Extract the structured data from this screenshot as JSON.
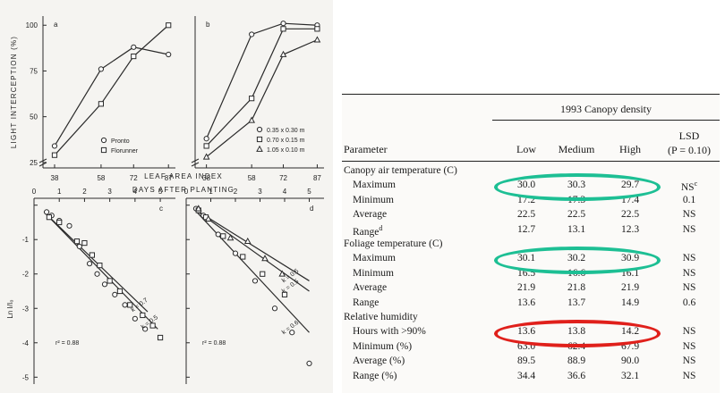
{
  "left_figure": {
    "top_ylabel": "LIGHT INTERCEPTION (%)",
    "top_xlabel": "DAYS AFTER PLANTING",
    "bottom_top_label": "LEAF AREA INDEX",
    "bottom_ylabel": "Ln I/I₀",
    "panel_letters": [
      "a",
      "b",
      "c",
      "d"
    ],
    "legend_a": [
      {
        "marker": "circle",
        "label": "Pronto"
      },
      {
        "marker": "square",
        "label": "Florunner"
      }
    ],
    "legend_b": [
      {
        "marker": "circle",
        "label": "0.35 x 0.30 m"
      },
      {
        "marker": "square",
        "label": "0.70 x 0.15 m"
      },
      {
        "marker": "triangle",
        "label": "1.05 x 0.10 m"
      }
    ],
    "r2_c": "r² = 0.88",
    "r2_d": "r² = 0.88",
    "line_labels_c": [
      "k = 0.7",
      "k = 0.5"
    ],
    "line_labels_d": [
      "k = 0.5",
      "k = 0.5",
      "k = 0.6"
    ]
  },
  "chart_data": [
    {
      "type": "line",
      "panel": "a",
      "x": [
        38,
        58,
        72,
        87
      ],
      "series": [
        {
          "name": "Pronto",
          "marker": "circle",
          "values": [
            34,
            76,
            88,
            84
          ]
        },
        {
          "name": "Florunner",
          "marker": "square",
          "values": [
            29,
            57,
            83,
            100
          ]
        }
      ],
      "xlabel": "DAYS AFTER PLANTING",
      "ylabel": "LIGHT INTERCEPTION (%)",
      "xticks": [
        38,
        58,
        72,
        87
      ],
      "yticks": [
        25,
        50,
        75,
        100
      ],
      "xlim": [
        33,
        90
      ],
      "ylim": [
        22,
        105
      ]
    },
    {
      "type": "line",
      "panel": "b",
      "x": [
        38,
        58,
        72,
        87
      ],
      "series": [
        {
          "name": "0.35 x 0.30 m",
          "marker": "circle",
          "values": [
            38,
            95,
            101,
            100
          ]
        },
        {
          "name": "0.70 x 0.15 m",
          "marker": "square",
          "values": [
            34,
            60,
            98,
            98
          ]
        },
        {
          "name": "1.05 x 0.10 m",
          "marker": "triangle",
          "values": [
            28,
            48,
            84,
            92
          ]
        }
      ],
      "xlabel": "DAYS AFTER PLANTING",
      "xticks": [
        38,
        58,
        72,
        87
      ],
      "xlim": [
        33,
        90
      ],
      "ylim": [
        22,
        105
      ]
    },
    {
      "type": "scatter",
      "panel": "c",
      "series": [
        {
          "marker": "circle",
          "points": [
            [
              0.5,
              -0.2
            ],
            [
              0.7,
              -0.3
            ],
            [
              1.0,
              -0.45
            ],
            [
              1.4,
              -0.6
            ],
            [
              1.8,
              -1.2
            ],
            [
              2.2,
              -1.7
            ],
            [
              2.5,
              -2.0
            ],
            [
              2.8,
              -2.3
            ],
            [
              3.2,
              -2.6
            ],
            [
              3.6,
              -2.9
            ],
            [
              4.0,
              -3.3
            ],
            [
              4.4,
              -3.6
            ]
          ]
        },
        {
          "marker": "square",
          "points": [
            [
              0.6,
              -0.35
            ],
            [
              1.0,
              -0.5
            ],
            [
              1.7,
              -1.05
            ],
            [
              2.0,
              -1.1
            ],
            [
              2.3,
              -1.45
            ],
            [
              2.6,
              -1.75
            ],
            [
              3.0,
              -2.2
            ],
            [
              3.4,
              -2.5
            ],
            [
              3.8,
              -2.9
            ],
            [
              4.3,
              -3.2
            ],
            [
              4.7,
              -3.5
            ],
            [
              5.0,
              -3.85
            ]
          ]
        }
      ],
      "lines": [
        {
          "label": "k = 0.7",
          "from": [
            0.4,
            -0.2
          ],
          "to": [
            4.5,
            -3.1
          ]
        },
        {
          "label": "k = 0.5",
          "from": [
            0.4,
            -0.2
          ],
          "to": [
            4.9,
            -3.6
          ]
        }
      ],
      "xlabel": "LEAF AREA INDEX",
      "ylabel": "Ln I/I₀",
      "xticks": [
        0,
        1,
        2,
        3,
        4,
        5
      ],
      "yticks": [
        0,
        -1,
        -2,
        -3,
        -4,
        -5
      ],
      "xlim": [
        0,
        5.6
      ],
      "ylim": [
        -5.2,
        0.2
      ]
    },
    {
      "type": "scatter",
      "panel": "d",
      "series": [
        {
          "marker": "circle",
          "points": [
            [
              0.4,
              -0.1
            ],
            [
              0.7,
              -0.3
            ],
            [
              1.3,
              -0.85
            ],
            [
              2.0,
              -1.4
            ],
            [
              2.8,
              -2.2
            ],
            [
              3.6,
              -3.0
            ],
            [
              4.3,
              -3.7
            ],
            [
              5.0,
              -4.6
            ]
          ]
        },
        {
          "marker": "square",
          "points": [
            [
              0.5,
              -0.15
            ],
            [
              0.8,
              -0.35
            ],
            [
              1.5,
              -0.9
            ],
            [
              2.3,
              -1.5
            ],
            [
              3.1,
              -2.0
            ],
            [
              4.0,
              -2.6
            ]
          ]
        },
        {
          "marker": "triangle",
          "points": [
            [
              0.5,
              -0.1
            ],
            [
              0.9,
              -0.4
            ],
            [
              1.8,
              -0.95
            ],
            [
              2.5,
              -1.05
            ],
            [
              3.2,
              -1.55
            ],
            [
              3.9,
              -2.0
            ]
          ]
        }
      ],
      "lines": [
        {
          "label": "k = 0.5",
          "from": [
            0.3,
            -0.1
          ],
          "to": [
            5.0,
            -2.2
          ]
        },
        {
          "label": "k = 0.5",
          "from": [
            0.3,
            -0.1
          ],
          "to": [
            5.0,
            -2.5
          ]
        },
        {
          "label": "k = 0.6",
          "from": [
            0.3,
            -0.1
          ],
          "to": [
            5.0,
            -3.7
          ]
        }
      ],
      "xticks": [
        0,
        1,
        2,
        3,
        4,
        5
      ],
      "yticks": [
        0,
        -1,
        -2,
        -3,
        -4,
        -5
      ],
      "xlim": [
        0,
        5.6
      ],
      "ylim": [
        -5.2,
        0.2
      ]
    }
  ],
  "table": {
    "title": "1993 Canopy density",
    "param_header": "Parameter",
    "col_headers": [
      "Low",
      "Medium",
      "High"
    ],
    "lsd_header": "LSD",
    "lsd_sub": "(P = 0.10)",
    "rows": [
      {
        "type": "section",
        "label": "Canopy air temperature (C)"
      },
      {
        "type": "data",
        "label": "Maximum",
        "values": [
          "30.0",
          "30.3",
          "29.7"
        ],
        "lsd": "NS",
        "lsd_sup": "c"
      },
      {
        "type": "data",
        "label": "Minimum",
        "values": [
          "17.2",
          "17.3",
          "17.4"
        ],
        "lsd": "0.1"
      },
      {
        "type": "data",
        "label": "Average",
        "values": [
          "22.5",
          "22.5",
          "22.5"
        ],
        "lsd": "NS"
      },
      {
        "type": "data",
        "label": "Range",
        "label_sup": "d",
        "values": [
          "12.7",
          "13.1",
          "12.3"
        ],
        "lsd": "NS"
      },
      {
        "type": "section",
        "label": "Foliage temperature (C)"
      },
      {
        "type": "data",
        "label": "Maximum",
        "values": [
          "30.1",
          "30.2",
          "30.9"
        ],
        "lsd": "NS"
      },
      {
        "type": "data",
        "label": "Minimum",
        "values": [
          "16.5",
          "16.6",
          "16.1"
        ],
        "lsd": "NS"
      },
      {
        "type": "data",
        "label": "Average",
        "values": [
          "21.9",
          "21.8",
          "21.9"
        ],
        "lsd": "NS"
      },
      {
        "type": "data",
        "label": "Range",
        "values": [
          "13.6",
          "13.7",
          "14.9"
        ],
        "lsd": "0.6"
      },
      {
        "type": "section",
        "label": "Relative humidity"
      },
      {
        "type": "data",
        "label": "Hours with >90%",
        "values": [
          "13.6",
          "13.8",
          "14.2"
        ],
        "lsd": "NS"
      },
      {
        "type": "data",
        "label": "Minimum (%)",
        "values": [
          "63.0",
          "62.4",
          "67.9"
        ],
        "lsd": "NS"
      },
      {
        "type": "data",
        "label": "Average (%)",
        "values": [
          "89.5",
          "88.9",
          "90.0"
        ],
        "lsd": "NS"
      },
      {
        "type": "data",
        "label": "Range (%)",
        "values": [
          "34.4",
          "36.6",
          "32.1"
        ],
        "lsd": "NS"
      }
    ]
  },
  "highlights": [
    {
      "row": 1,
      "color": "#1dbf94"
    },
    {
      "row": 6,
      "color": "#1dbf94"
    },
    {
      "row": 11,
      "color": "#e0201b"
    }
  ]
}
